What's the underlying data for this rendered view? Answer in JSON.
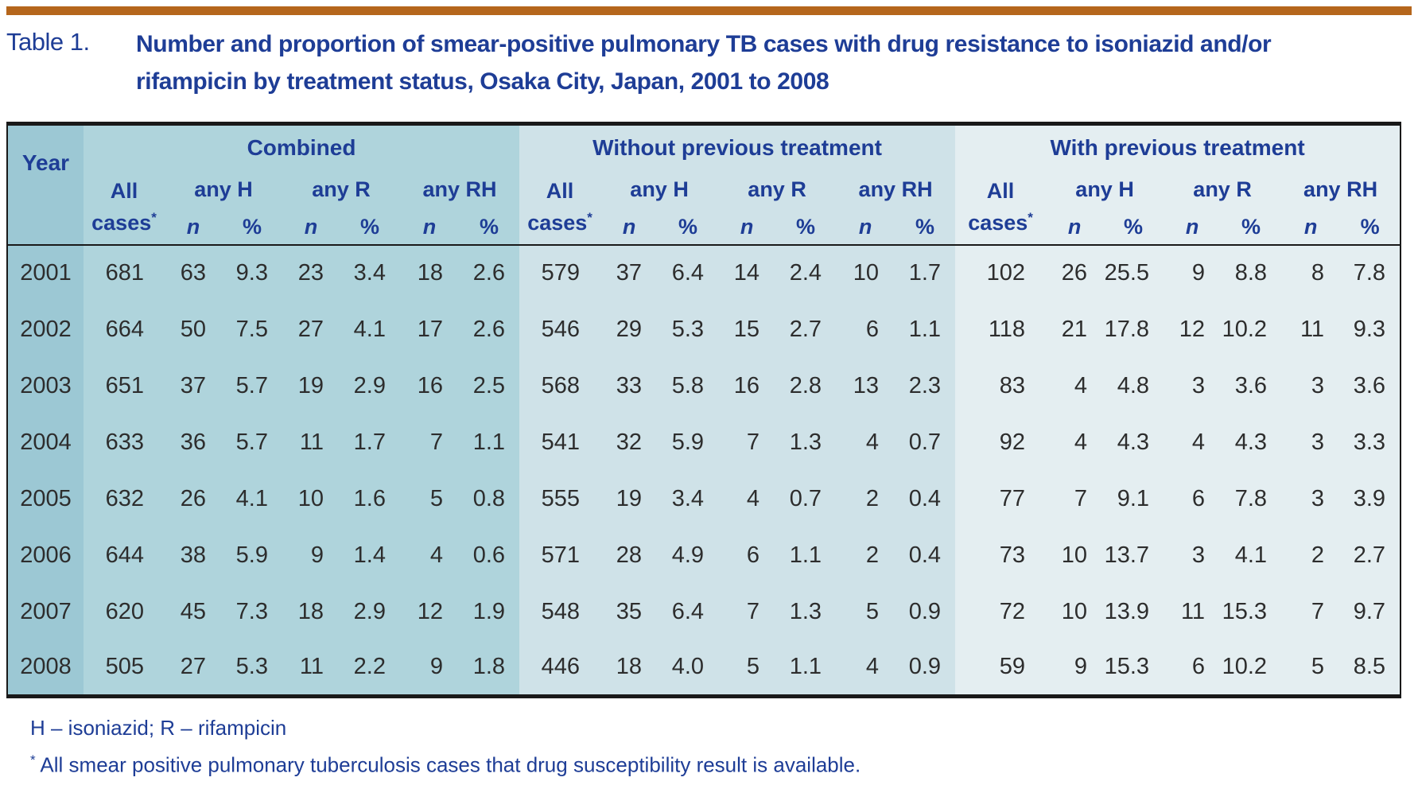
{
  "caption": {
    "label": "Table 1.",
    "title": "Number and proportion of smear-positive pulmonary TB cases with drug resistance to isoniazid and/or rifampicin by treatment status, Osaka City, Japan, 2001 to 2008",
    "title_lines": [
      "Number and proportion of smear-positive pulmonary TB cases with drug resistance to isoniazid and/or",
      "rifampicin by treatment status, Osaka City, Japan, 2001 to 2008"
    ]
  },
  "table": {
    "year_header": "Year",
    "groups": [
      "Combined",
      "Without previous treatment",
      "With previous treatment"
    ],
    "all_cases_lines": [
      "All",
      "cases"
    ],
    "all_cases_star": "*",
    "any_headers": [
      "any H",
      "any R",
      "any RH"
    ],
    "np": [
      "n",
      "%"
    ],
    "column_keys": [
      "all_cases",
      "any_H_n",
      "any_H_pct",
      "any_R_n",
      "any_R_pct",
      "any_RH_n",
      "any_RH_pct"
    ],
    "rows": [
      {
        "year": "2001",
        "combined": [
          "681",
          "63",
          "9.3",
          "23",
          "3.4",
          "18",
          "2.6"
        ],
        "without": [
          "579",
          "37",
          "6.4",
          "14",
          "2.4",
          "10",
          "1.7"
        ],
        "with_prev": [
          "102",
          "26",
          "25.5",
          "9",
          "8.8",
          "8",
          "7.8"
        ]
      },
      {
        "year": "2002",
        "combined": [
          "664",
          "50",
          "7.5",
          "27",
          "4.1",
          "17",
          "2.6"
        ],
        "without": [
          "546",
          "29",
          "5.3",
          "15",
          "2.7",
          "6",
          "1.1"
        ],
        "with_prev": [
          "118",
          "21",
          "17.8",
          "12",
          "10.2",
          "11",
          "9.3"
        ]
      },
      {
        "year": "2003",
        "combined": [
          "651",
          "37",
          "5.7",
          "19",
          "2.9",
          "16",
          "2.5"
        ],
        "without": [
          "568",
          "33",
          "5.8",
          "16",
          "2.8",
          "13",
          "2.3"
        ],
        "with_prev": [
          "83",
          "4",
          "4.8",
          "3",
          "3.6",
          "3",
          "3.6"
        ]
      },
      {
        "year": "2004",
        "combined": [
          "633",
          "36",
          "5.7",
          "11",
          "1.7",
          "7",
          "1.1"
        ],
        "without": [
          "541",
          "32",
          "5.9",
          "7",
          "1.3",
          "4",
          "0.7"
        ],
        "with_prev": [
          "92",
          "4",
          "4.3",
          "4",
          "4.3",
          "3",
          "3.3"
        ]
      },
      {
        "year": "2005",
        "combined": [
          "632",
          "26",
          "4.1",
          "10",
          "1.6",
          "5",
          "0.8"
        ],
        "without": [
          "555",
          "19",
          "3.4",
          "4",
          "0.7",
          "2",
          "0.4"
        ],
        "with_prev": [
          "77",
          "7",
          "9.1",
          "6",
          "7.8",
          "3",
          "3.9"
        ]
      },
      {
        "year": "2006",
        "combined": [
          "644",
          "38",
          "5.9",
          "9",
          "1.4",
          "4",
          "0.6"
        ],
        "without": [
          "571",
          "28",
          "4.9",
          "6",
          "1.1",
          "2",
          "0.4"
        ],
        "with_prev": [
          "73",
          "10",
          "13.7",
          "3",
          "4.1",
          "2",
          "2.7"
        ]
      },
      {
        "year": "2007",
        "combined": [
          "620",
          "45",
          "7.3",
          "18",
          "2.9",
          "12",
          "1.9"
        ],
        "without": [
          "548",
          "35",
          "6.4",
          "7",
          "1.3",
          "5",
          "0.9"
        ],
        "with_prev": [
          "72",
          "10",
          "13.9",
          "11",
          "15.3",
          "7",
          "9.7"
        ]
      },
      {
        "year": "2008",
        "combined": [
          "505",
          "27",
          "5.3",
          "11",
          "2.2",
          "9",
          "1.8"
        ],
        "without": [
          "446",
          "18",
          "4.0",
          "5",
          "1.1",
          "4",
          "0.9"
        ],
        "with_prev": [
          "59",
          "9",
          "15.3",
          "6",
          "10.2",
          "5",
          "8.5"
        ]
      }
    ]
  },
  "footnotes": {
    "abbrev": "H – isoniazid; R – rifampicin",
    "star_symbol": "*",
    "star_text": "All smear positive pulmonary tuberculosis cases that drug susceptibility result is available."
  },
  "colors": {
    "rule_orange": "#b5661c",
    "heading_blue": "#1e3d96",
    "body_text": "#2d2d2d",
    "border_black": "#191919",
    "year_col_bg": "#9cc8d4",
    "combined_bg": "#afd4dc",
    "without_bg": "#cfe2e8",
    "with_bg": "#e4eef1"
  }
}
